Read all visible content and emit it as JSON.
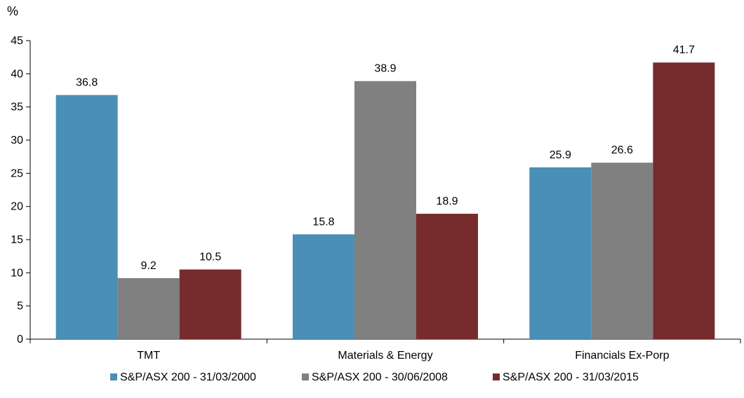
{
  "chart_data": {
    "type": "bar",
    "title": "",
    "xlabel": "",
    "ylabel": "%",
    "ylim": [
      0,
      45
    ],
    "yticks": [
      0,
      5,
      10,
      15,
      20,
      25,
      30,
      35,
      40,
      45
    ],
    "grid": false,
    "legend_position": "bottom",
    "categories": [
      "TMT",
      "Materials & Energy",
      "Financials Ex-Porp"
    ],
    "series": [
      {
        "name": "S&P/ASX 200 - 31/03/2000",
        "color": "#4a8fb5",
        "values": [
          36.8,
          15.8,
          25.9
        ]
      },
      {
        "name": "S&P/ASX 200 - 30/06/2008",
        "color": "#808080",
        "values": [
          9.2,
          38.9,
          26.6
        ]
      },
      {
        "name": "S&P/ASX 200 - 31/03/2015",
        "color": "#762c2c",
        "values": [
          10.5,
          18.9,
          41.7
        ]
      }
    ]
  }
}
